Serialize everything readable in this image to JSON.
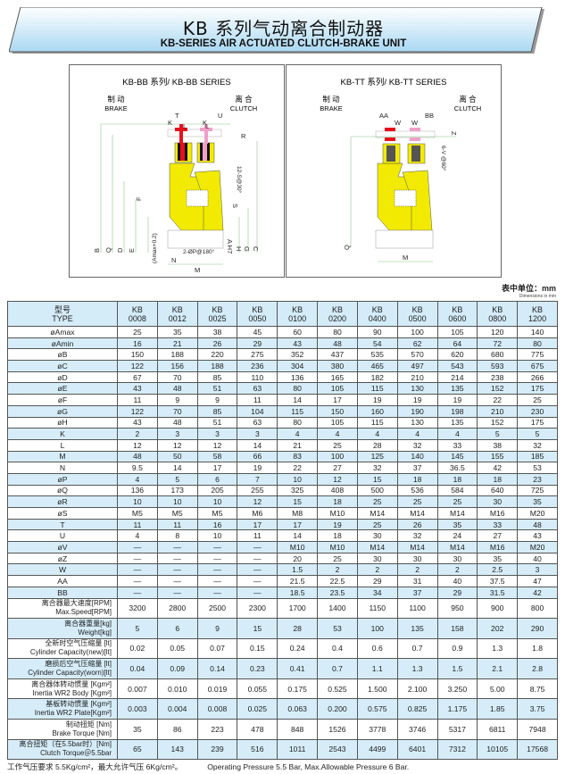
{
  "header": {
    "title_cn": "KB 系列气动离合制动器",
    "title_en": "KB-SERIES AIR ACTUATED CLUTCH-BRAKE UNIT"
  },
  "diagrams": {
    "bb": {
      "title": "KB-BB 系列/ KB-BB SERIES",
      "brake_cn": "制 动",
      "brake_en": "BRAKE",
      "clutch_cn": "离 合",
      "clutch_en": "CLUTCH",
      "dims_top": [
        "T",
        "L",
        "K",
        "U",
        "L",
        "K",
        "R"
      ],
      "dims_left": [
        "B",
        "Q",
        "D",
        "E",
        "F",
        "(Amax+0.2)"
      ],
      "dims_right": [
        "12-S@30°",
        "S",
        "A H7",
        "H",
        "G",
        "C"
      ],
      "dims_bottom": [
        "N",
        "M",
        "2-ØP@180°"
      ]
    },
    "tt": {
      "title": "KB-TT 系列/ KB-TT SERIES",
      "brake_cn": "制 动",
      "brake_en": "BRAKE",
      "clutch_cn": "离 合",
      "clutch_en": "CLUTCH",
      "dims_top": [
        "AA",
        "W",
        "W",
        "BB",
        "Z"
      ],
      "dims_left": [
        "Q"
      ],
      "dims_right": [
        "6-V @60°"
      ],
      "dims_bottom": [
        "M"
      ]
    },
    "colors": {
      "body": "#f2ea00",
      "brake": "#e8101a",
      "clutch": "#f0a0c8",
      "dim": "#8cc88c"
    }
  },
  "units": {
    "cn": "表中单位：mm",
    "en": "Dimensions in mm"
  },
  "table": {
    "header": {
      "cn": "型号",
      "en": "TYPE"
    },
    "models": [
      "0008",
      "0012",
      "0025",
      "0050",
      "0100",
      "0200",
      "0400",
      "0500",
      "0600",
      "0800",
      "1200"
    ],
    "model_prefix": "KB",
    "rows": [
      {
        "label": "øAmax",
        "values": [
          "25",
          "35",
          "38",
          "45",
          "60",
          "80",
          "90",
          "100",
          "105",
          "120",
          "140"
        ]
      },
      {
        "label": "øAmin",
        "values": [
          "16",
          "21",
          "26",
          "29",
          "43",
          "48",
          "54",
          "62",
          "64",
          "72",
          "80"
        ]
      },
      {
        "label": "øB",
        "values": [
          "150",
          "188",
          "220",
          "275",
          "352",
          "437",
          "535",
          "570",
          "620",
          "680",
          "775"
        ]
      },
      {
        "label": "øC",
        "values": [
          "122",
          "156",
          "188",
          "236",
          "304",
          "380",
          "465",
          "497",
          "543",
          "593",
          "675"
        ]
      },
      {
        "label": "øD",
        "values": [
          "67",
          "70",
          "85",
          "110",
          "136",
          "165",
          "182",
          "210",
          "214",
          "238",
          "266"
        ]
      },
      {
        "label": "øE",
        "values": [
          "43",
          "48",
          "51",
          "63",
          "80",
          "105",
          "115",
          "130",
          "135",
          "152",
          "175"
        ]
      },
      {
        "label": "øF",
        "values": [
          "11",
          "9",
          "9",
          "11",
          "14",
          "17",
          "19",
          "19",
          "19",
          "22",
          "25"
        ]
      },
      {
        "label": "øG",
        "values": [
          "122",
          "70",
          "85",
          "104",
          "115",
          "150",
          "160",
          "190",
          "198",
          "210",
          "230"
        ]
      },
      {
        "label": "øH",
        "values": [
          "43",
          "48",
          "51",
          "63",
          "80",
          "105",
          "115",
          "130",
          "135",
          "152",
          "175"
        ]
      },
      {
        "label": "K",
        "values": [
          "2",
          "3",
          "3",
          "3",
          "4",
          "4",
          "4",
          "4",
          "4",
          "5",
          "5"
        ]
      },
      {
        "label": "L",
        "values": [
          "12",
          "12",
          "12",
          "14",
          "21",
          "25",
          "28",
          "32",
          "33",
          "38",
          "32"
        ]
      },
      {
        "label": "M",
        "values": [
          "48",
          "50",
          "58",
          "66",
          "83",
          "100",
          "125",
          "140",
          "145",
          "155",
          "185"
        ]
      },
      {
        "label": "N",
        "values": [
          "9.5",
          "14",
          "17",
          "19",
          "22",
          "27",
          "32",
          "37",
          "36.5",
          "42",
          "53"
        ]
      },
      {
        "label": "øP",
        "values": [
          "4",
          "5",
          "6",
          "7",
          "10",
          "12",
          "15",
          "18",
          "18",
          "18",
          "23"
        ]
      },
      {
        "label": "øQ",
        "values": [
          "136",
          "173",
          "205",
          "255",
          "325",
          "408",
          "500",
          "536",
          "584",
          "640",
          "725"
        ]
      },
      {
        "label": "øR",
        "values": [
          "10",
          "10",
          "10",
          "12",
          "15",
          "18",
          "25",
          "25",
          "25",
          "30",
          "35"
        ]
      },
      {
        "label": "øS",
        "values": [
          "M5",
          "M5",
          "M5",
          "M6",
          "M8",
          "M10",
          "M14",
          "M14",
          "M14",
          "M16",
          "M20"
        ]
      },
      {
        "label": "T",
        "values": [
          "11",
          "11",
          "16",
          "17",
          "17",
          "19",
          "25",
          "26",
          "35",
          "33",
          "48"
        ]
      },
      {
        "label": "U",
        "values": [
          "4",
          "8",
          "10",
          "11",
          "14",
          "18",
          "30",
          "32",
          "24",
          "27",
          "43"
        ]
      },
      {
        "label": "øV",
        "values": [
          "—",
          "—",
          "—",
          "—",
          "M10",
          "M10",
          "M14",
          "M14",
          "M14",
          "M16",
          "M20"
        ]
      },
      {
        "label": "øZ",
        "values": [
          "—",
          "—",
          "—",
          "—",
          "20",
          "25",
          "30",
          "30",
          "30",
          "35",
          "40"
        ]
      },
      {
        "label": "W",
        "values": [
          "—",
          "—",
          "—",
          "—",
          "1.5",
          "2",
          "2",
          "2",
          "2",
          "2.5",
          "3"
        ]
      },
      {
        "label": "AA",
        "values": [
          "—",
          "—",
          "—",
          "—",
          "21.5",
          "22.5",
          "29",
          "31",
          "40",
          "37.5",
          "47"
        ]
      },
      {
        "label": "BB",
        "values": [
          "—",
          "—",
          "—",
          "—",
          "18.5",
          "23.5",
          "34",
          "37",
          "29",
          "31.5",
          "42"
        ]
      }
    ],
    "spec_rows": [
      {
        "cn": "离合器最大速度[RPM]",
        "en": "Max.Speed[RPM]",
        "values": [
          "3200",
          "2800",
          "2500",
          "2300",
          "1700",
          "1400",
          "1150",
          "1100",
          "950",
          "900",
          "800"
        ]
      },
      {
        "cn": "离合器重量[kg]",
        "en": "Weight[kg]",
        "values": [
          "5",
          "6",
          "9",
          "15",
          "28",
          "53",
          "100",
          "135",
          "158",
          "202",
          "290"
        ]
      },
      {
        "cn": "全新时空气压缩量 [lt]",
        "en": "Cylinder Capacity(new)[lt]",
        "values": [
          "0.02",
          "0.05",
          "0.07",
          "0.15",
          "0.24",
          "0.4",
          "0.6",
          "0.7",
          "0.9",
          "1.3",
          "1.8"
        ]
      },
      {
        "cn": "磨损后空气压缩量 [lt]",
        "en": "Cylinder Capacity(worn)[lt]",
        "values": [
          "0.04",
          "0.09",
          "0.14",
          "0.23",
          "0.41",
          "0.7",
          "1.1",
          "1.3",
          "1.5",
          "2.1",
          "2.8"
        ]
      },
      {
        "cn": "离合器体转动惯量 [Kgm²]",
        "en": "Inertia WR2 Body [Kgm²]",
        "values": [
          "0.007",
          "0.010",
          "0.019",
          "0.055",
          "0.175",
          "0.525",
          "1.500",
          "2.100",
          "3.250",
          "5.00",
          "8.75"
        ]
      },
      {
        "cn": "基板转动惯量 [Kgm²]",
        "en": "Inertia WR2 Plate[Kgm²]",
        "values": [
          "0.003",
          "0.004",
          "0.008",
          "0.025",
          "0.063",
          "0.200",
          "0.575",
          "0.825",
          "1.175",
          "1.85",
          "3.75"
        ]
      },
      {
        "cn": "制动扭矩 [Nm]",
        "en": "Brake Torque [Nm]",
        "values": [
          "35",
          "86",
          "223",
          "478",
          "848",
          "1526",
          "3778",
          "3746",
          "5317",
          "6811",
          "7948"
        ]
      },
      {
        "cn": "离合扭矩（在5.5bar时）[Nm]",
        "en": "Clutch Torque＠5.5bar",
        "values": [
          "65",
          "143",
          "239",
          "516",
          "1011",
          "2543",
          "4499",
          "6401",
          "7312",
          "10105",
          "17568"
        ]
      }
    ]
  },
  "footer": {
    "cn": "工作气压要求 5.5Kg/cm²，最大允许气压 6Kg/cm²。",
    "en": "Operating Pressure 5.5 Bar, Max.Allowable Pressure 6 Bar."
  }
}
